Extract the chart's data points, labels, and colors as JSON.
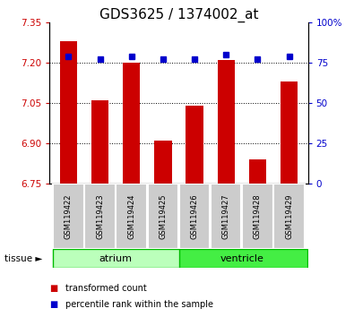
{
  "title": "GDS3625 / 1374002_at",
  "samples": [
    "GSM119422",
    "GSM119423",
    "GSM119424",
    "GSM119425",
    "GSM119426",
    "GSM119427",
    "GSM119428",
    "GSM119429"
  ],
  "bar_values": [
    7.28,
    7.06,
    7.2,
    6.91,
    7.04,
    7.21,
    6.84,
    7.13
  ],
  "percentile_values": [
    79,
    77,
    79,
    77,
    77,
    80,
    77,
    79
  ],
  "ylim_left": [
    6.75,
    7.35
  ],
  "ylim_right": [
    0,
    100
  ],
  "yticks_left": [
    6.75,
    6.9,
    7.05,
    7.2,
    7.35
  ],
  "yticks_right": [
    0,
    25,
    50,
    75,
    100
  ],
  "bar_color": "#cc0000",
  "marker_color": "#0000cc",
  "bar_bottom": 6.75,
  "atrium_color": "#bbffbb",
  "ventricle_color": "#44ee44",
  "group_edge_color": "#00bb00",
  "groups": [
    {
      "label": "atrium",
      "start": 0,
      "end": 3
    },
    {
      "label": "ventricle",
      "start": 4,
      "end": 7
    }
  ],
  "tissue_label": "tissue",
  "legend_items": [
    {
      "label": "transformed count",
      "color": "#cc0000"
    },
    {
      "label": "percentile rank within the sample",
      "color": "#0000cc"
    }
  ],
  "tick_label_color_left": "#cc0000",
  "tick_label_color_right": "#0000cc",
  "dotted_lines": [
    6.9,
    7.05,
    7.2
  ],
  "title_fontsize": 11,
  "sample_box_color": "#cccccc",
  "sample_box_edge": "#aaaaaa"
}
